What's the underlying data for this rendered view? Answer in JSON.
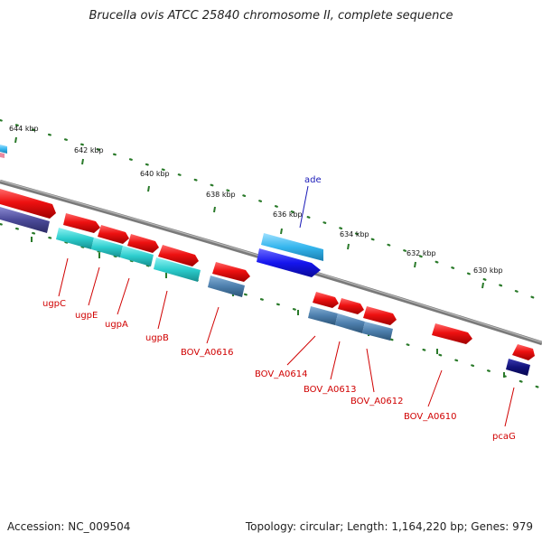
{
  "title": "Brucella ovis ATCC 25840 chromosome II, complete sequence",
  "footer": {
    "accession": "Accession: NC_009504",
    "topology": "Topology: circular; Length: 1,164,220 bp; Genes: 979"
  },
  "colors": {
    "backbone": "#8a8a8a",
    "tick": "#2a7a2a",
    "red_gene": "#ee1111",
    "cyan_gene": "#2ccdcd",
    "steel_gene": "#4d7fad",
    "light_blue_gene": "#35b6ee",
    "blue_gene": "#1515ee",
    "navy_gene": "#12127a",
    "purple_gene": "#4b4a99",
    "label_red": "#d00000",
    "label_blue": "#1a1ab8"
  },
  "ticks": [
    {
      "label": "644 kbp"
    },
    {
      "label": "642 kbp"
    },
    {
      "label": "640 kbp"
    },
    {
      "label": "638 kbp"
    },
    {
      "label": "636 kbp"
    },
    {
      "label": "634 kbp"
    },
    {
      "label": "632 kbp"
    },
    {
      "label": "630 kbp"
    }
  ],
  "gene_labels": [
    {
      "text": "ugpC",
      "color": "red"
    },
    {
      "text": "ugpE",
      "color": "red"
    },
    {
      "text": "ugpA",
      "color": "red"
    },
    {
      "text": "ugpB",
      "color": "red"
    },
    {
      "text": "BOV_A0616",
      "color": "red"
    },
    {
      "text": "ade",
      "color": "blue"
    },
    {
      "text": "BOV_A0614",
      "color": "red"
    },
    {
      "text": "BOV_A0613",
      "color": "red"
    },
    {
      "text": "BOV_A0612",
      "color": "red"
    },
    {
      "text": "BOV_A0610",
      "color": "red"
    },
    {
      "text": "pcaG",
      "color": "red"
    }
  ]
}
